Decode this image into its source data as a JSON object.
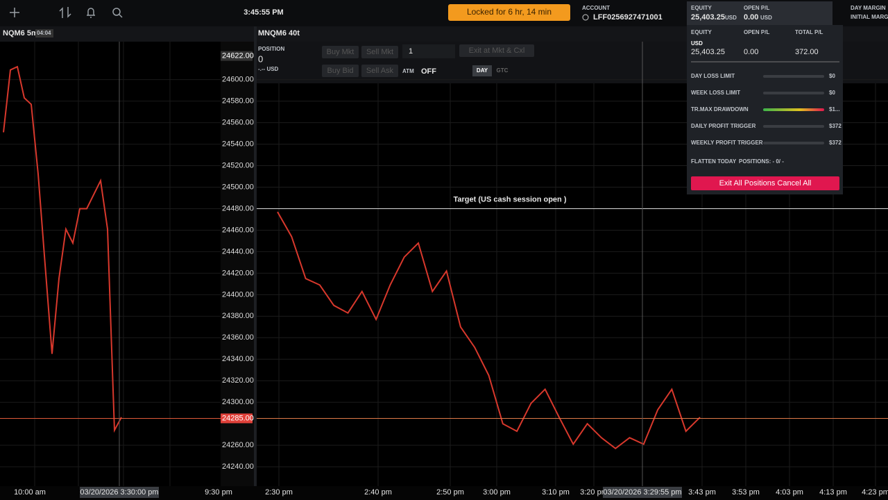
{
  "toolbar": {
    "clock": "3:45:55 PM",
    "lock": "Locked for 6 hr, 14 min",
    "account_label": "ACCOUNT",
    "account": "LFF0256927471001",
    "equity_label": "EQUITY",
    "equity": "25,403.25",
    "equity_unit": "USD",
    "open_pl_label": "OPEN P/L",
    "open_pl": "0.00",
    "open_pl_unit": "USD",
    "day_margin": "DAY MARGIN",
    "initial_margin": "INITIAL MARGIN"
  },
  "price_axis": {
    "ylim": [
      24222,
      24634
    ],
    "yticks": [
      {
        "value": 24600,
        "label": "24600.00"
      },
      {
        "value": 24580,
        "label": "24580.00"
      },
      {
        "value": 24560,
        "label": "24560.00"
      },
      {
        "value": 24540,
        "label": "24540.00"
      },
      {
        "value": 24520,
        "label": "24520.00"
      },
      {
        "value": 24500,
        "label": "24500.00"
      },
      {
        "value": 24480,
        "label": "24480.00"
      },
      {
        "value": 24460,
        "label": "24460.00"
      },
      {
        "value": 24440,
        "label": "24440.00"
      },
      {
        "value": 24420,
        "label": "24420.00"
      },
      {
        "value": 24400,
        "label": "24400.00"
      },
      {
        "value": 24380,
        "label": "24380.00"
      },
      {
        "value": 24360,
        "label": "24360.00"
      },
      {
        "value": 24340,
        "label": "24340.00"
      },
      {
        "value": 24320,
        "label": "24320.00"
      },
      {
        "value": 24300,
        "label": "24300.00"
      },
      {
        "value": 24260,
        "label": "24260.00"
      },
      {
        "value": 24240,
        "label": "24240.00"
      }
    ],
    "high_marker": {
      "value": 24622,
      "label": "24622.00"
    },
    "last_price": {
      "value": 24285,
      "label": "24285.00"
    }
  },
  "left_chart": {
    "title": "NQM6 5m",
    "badge": "04:04",
    "x_labels": [
      "10:00 am",
      "9:30 pm"
    ],
    "crosshair": "03/20/2026 3:30:00 pm",
    "prices": [
      24551,
      24609,
      24612,
      24583,
      24577,
      24512,
      24428,
      24345,
      24415,
      24461,
      24448,
      24480,
      24480,
      24493,
      24506,
      24461,
      24274,
      24286
    ]
  },
  "right_chart": {
    "title": "MNQM6 40t",
    "x_labels": [
      "2:30 pm",
      "2:40 pm",
      "2:50 pm",
      "3:00 pm",
      "3:10 pm",
      "3:20 pm",
      "3:43 pm",
      "3:53 pm",
      "4:03 pm",
      "4:13 pm",
      "4:23 pm"
    ],
    "crosshair": "03/20/2026 3:29:55 pm",
    "target": {
      "label": "Target (US cash session open )",
      "value": 24480
    },
    "prices": [
      24477,
      24454,
      24415,
      24409,
      24390,
      24383,
      24403,
      24377,
      24409,
      24435,
      24448,
      24403,
      24422,
      24370,
      24351,
      24325,
      24280,
      24273,
      24299,
      24312,
      24286,
      24261,
      24280,
      24267,
      24257,
      24267,
      24261,
      24293,
      24312,
      24273,
      24286
    ]
  },
  "order_panel": {
    "position_label": "POSITION",
    "position": "0",
    "position_value": "-.-- USD",
    "buy_mkt": "Buy Mkt",
    "sell_mkt": "Sell Mkt",
    "quantity": "1",
    "exit": "Exit at Mkt & Cxl",
    "buy_bid": "Buy Bid",
    "sell_ask": "Sell Ask",
    "atm_label": "ATM",
    "atm": "OFF",
    "day": "DAY",
    "gtc": "GTC"
  },
  "account_panel": {
    "equity_label": "EQUITY",
    "open_pl_label": "OPEN P/L",
    "total_pl_label": "TOTAL P/L",
    "currency": "USD",
    "equity": "25,403.25",
    "open_pl": "0.00",
    "total_pl": "372.00",
    "limits": [
      {
        "label": "DAY LOSS LIMIT",
        "value": "$0"
      },
      {
        "label": "WEEK LOSS LIMIT",
        "value": "$0"
      },
      {
        "label": "TR.MAX DRAWDOWN",
        "value": "$1..."
      },
      {
        "label": "DAILY PROFIT TRIGGER",
        "value": "$372"
      },
      {
        "label": "WEEKLY PROFIT TRIGGER",
        "value": "$372"
      }
    ],
    "flatten": "FLATTEN TODAY",
    "positions": "POSITIONS: - 0/ -",
    "button": "Exit All Positions Cancel All"
  }
}
